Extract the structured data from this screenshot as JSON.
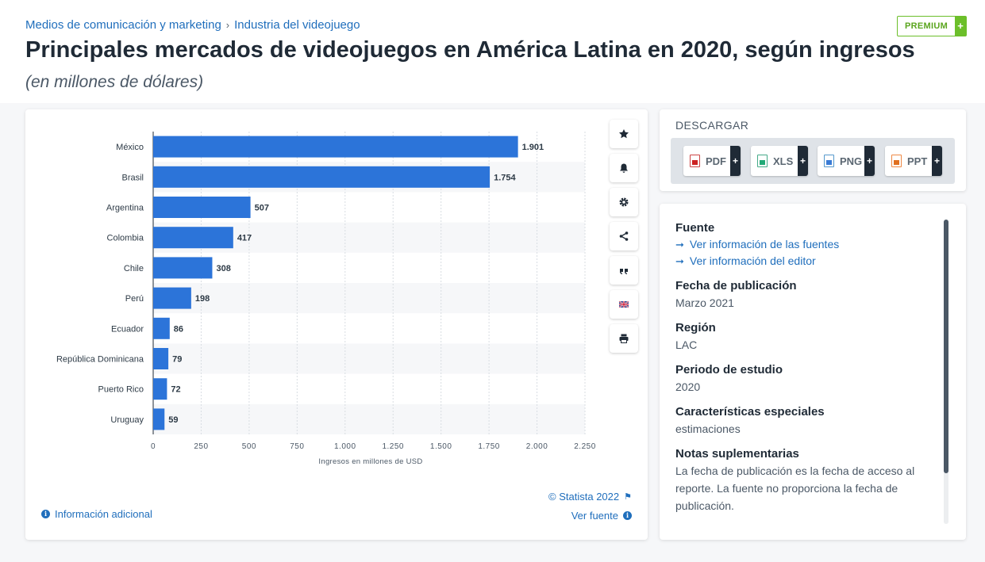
{
  "breadcrumb": {
    "item1": "Medios de comunicación y marketing",
    "sep": "›",
    "item2": "Industria del videojuego"
  },
  "premium": {
    "label": "PREMIUM",
    "plus": "+",
    "color": "#6cbf2a"
  },
  "header": {
    "title": "Principales mercados de videojuegos en América Latina en 2020, según ingresos",
    "subtitle": "(en millones de dólares)"
  },
  "chart_data": {
    "type": "bar",
    "orientation": "horizontal",
    "categories": [
      "México",
      "Brasil",
      "Argentina",
      "Colombia",
      "Chile",
      "Perú",
      "Ecuador",
      "República Dominicana",
      "Puerto Rico",
      "Uruguay"
    ],
    "values": [
      1901,
      1754,
      507,
      417,
      308,
      198,
      86,
      79,
      72,
      59
    ],
    "value_labels": [
      "1.901",
      "1.754",
      "507",
      "417",
      "308",
      "198",
      "86",
      "79",
      "72",
      "59"
    ],
    "xlabel": "Ingresos en millones de USD",
    "xlim": [
      0,
      2250
    ],
    "xticks": [
      0,
      250,
      500,
      750,
      1000,
      1250,
      1500,
      1750,
      2000,
      2250
    ],
    "xtick_labels": [
      "0",
      "250",
      "500",
      "750",
      "1.000",
      "1.250",
      "1.500",
      "1.750",
      "2.000",
      "2.250"
    ],
    "bar_color": "#2c74d9",
    "grid": "vertical dashed"
  },
  "chart_footer": {
    "info": "Información adicional",
    "copyright": "© Statista 2022",
    "source": "Ver fuente"
  },
  "toolbar_icons": [
    "star-icon",
    "bell-icon",
    "gear-icon",
    "share-icon",
    "quote-icon",
    "flag-icon",
    "print-icon"
  ],
  "download": {
    "title": "DESCARGAR",
    "buttons": [
      {
        "label": "PDF",
        "plus": "+"
      },
      {
        "label": "XLS",
        "plus": "+"
      },
      {
        "label": "PNG",
        "plus": "+"
      },
      {
        "label": "PPT",
        "plus": "+"
      }
    ]
  },
  "meta": {
    "source_head": "Fuente",
    "source_link1": "Ver información de las fuentes",
    "source_link2": "Ver información del editor",
    "pubdate_head": "Fecha de publicación",
    "pubdate_val": "Marzo 2021",
    "region_head": "Región",
    "region_val": "LAC",
    "period_head": "Periodo de estudio",
    "period_val": "2020",
    "special_head": "Características especiales",
    "special_val": "estimaciones",
    "notes_head": "Notas suplementarias",
    "notes_val": "La fecha de publicación es la fecha de acceso al reporte. La fuente no proporciona la fecha de publicación."
  },
  "colors": {
    "link": "#1f6ebc",
    "dark": "#1f2a36",
    "accent_green": "#6cbf2a"
  }
}
